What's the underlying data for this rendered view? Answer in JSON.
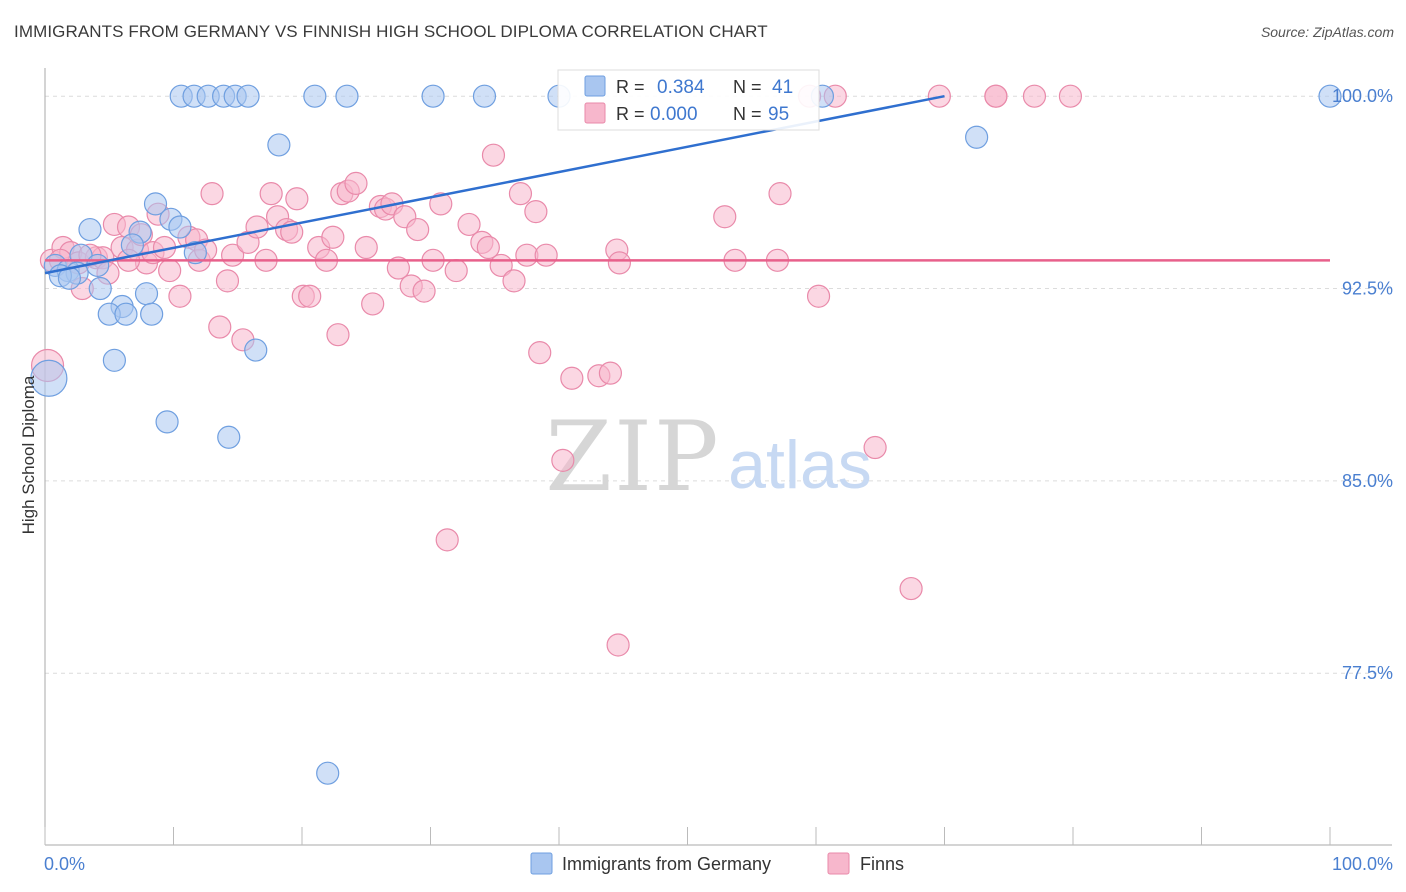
{
  "header": {
    "title": "IMMIGRANTS FROM GERMANY VS FINNISH HIGH SCHOOL DIPLOMA CORRELATION CHART",
    "source": "Source: ZipAtlas.com"
  },
  "watermark": {
    "zip": "ZIP",
    "atlas": "atlas"
  },
  "colors": {
    "series_a_fill": "#a9c6f0",
    "series_a_stroke": "#6f9fe0",
    "series_a_line": "#2f6fcf",
    "series_b_fill": "#f7b7cc",
    "series_b_stroke": "#e98aaa",
    "series_b_line": "#e8608b",
    "axis_text": "#4a7fd0"
  },
  "chart_data": {
    "type": "scatter",
    "title": "IMMIGRANTS FROM GERMANY VS FINNISH HIGH SCHOOL DIPLOMA CORRELATION CHART",
    "xlabel": "",
    "ylabel": "High School Diploma",
    "xlim": [
      0,
      100
    ],
    "ylim": [
      70.8,
      101.1
    ],
    "x_tick_labels": [
      "0.0%",
      "100.0%"
    ],
    "y_ticks": [
      100.0,
      92.5,
      85.0,
      77.5
    ],
    "y_tick_labels": [
      "100.0%",
      "92.5%",
      "85.0%",
      "77.5%"
    ],
    "grid": true,
    "legend_position": "bottom",
    "stats": [
      {
        "r_label": "R =",
        "r_value": "0.384",
        "n_label": "N =",
        "n_value": "41"
      },
      {
        "r_label": "R =",
        "r_value": "0.000",
        "n_label": "N =",
        "n_value": "95"
      }
    ],
    "series": [
      {
        "name": "Immigrants from Germany",
        "trend": {
          "x": [
            0,
            70
          ],
          "y": [
            93.1,
            100.0
          ]
        },
        "points": [
          [
            10.6,
            100
          ],
          [
            11.6,
            100
          ],
          [
            12.7,
            100
          ],
          [
            13.9,
            100
          ],
          [
            14.8,
            100
          ],
          [
            15.8,
            100
          ],
          [
            21.0,
            100
          ],
          [
            23.5,
            100
          ],
          [
            30.2,
            100
          ],
          [
            34.2,
            100
          ],
          [
            40.0,
            100
          ],
          [
            60.5,
            100
          ],
          [
            100,
            100
          ],
          [
            72.5,
            98.4
          ],
          [
            18.2,
            98.1
          ],
          [
            8.6,
            95.8
          ],
          [
            9.8,
            95.2
          ],
          [
            10.5,
            94.9
          ],
          [
            3.5,
            94.8
          ],
          [
            7.4,
            94.7
          ],
          [
            6.8,
            94.2
          ],
          [
            11.7,
            93.9
          ],
          [
            2.8,
            93.8
          ],
          [
            0.8,
            93.4
          ],
          [
            4.1,
            93.4
          ],
          [
            1.8,
            93.2
          ],
          [
            2.5,
            93.1
          ],
          [
            1.2,
            93.0
          ],
          [
            1.9,
            92.9
          ],
          [
            4.3,
            92.5
          ],
          [
            7.9,
            92.3
          ],
          [
            6.0,
            91.8
          ],
          [
            5.0,
            91.5
          ],
          [
            6.3,
            91.5
          ],
          [
            8.3,
            91.5
          ],
          [
            16.4,
            90.1
          ],
          [
            5.4,
            89.7
          ],
          [
            0.3,
            89.0
          ],
          [
            9.5,
            87.3
          ],
          [
            14.3,
            86.7
          ],
          [
            22.0,
            73.6
          ]
        ],
        "sizes": [
          11,
          11,
          11,
          11,
          11,
          11,
          11,
          11,
          11,
          11,
          11,
          11,
          11,
          11,
          11,
          11,
          11,
          11,
          11,
          11,
          11,
          11,
          11,
          11,
          11,
          11,
          11,
          11,
          11,
          11,
          11,
          11,
          11,
          11,
          11,
          11,
          11,
          18,
          11,
          11,
          11
        ]
      },
      {
        "name": "Finns",
        "trend": {
          "x": [
            0,
            100
          ],
          "y": [
            93.6,
            93.6
          ]
        },
        "points": [
          [
            74.0,
            100
          ],
          [
            69.6,
            100
          ],
          [
            61.5,
            100
          ],
          [
            59.5,
            100
          ],
          [
            0.5,
            93.6
          ],
          [
            1.4,
            94.1
          ],
          [
            2.0,
            93.9
          ],
          [
            2.6,
            93.5
          ],
          [
            2.9,
            92.5
          ],
          [
            4.0,
            93.7
          ],
          [
            4.5,
            93.7
          ],
          [
            4.9,
            93.1
          ],
          [
            5.4,
            95.0
          ],
          [
            6.0,
            94.1
          ],
          [
            6.5,
            94.9
          ],
          [
            7.2,
            94.0
          ],
          [
            7.5,
            94.6
          ],
          [
            7.9,
            93.5
          ],
          [
            8.4,
            93.9
          ],
          [
            8.8,
            95.4
          ],
          [
            9.3,
            94.1
          ],
          [
            9.7,
            93.2
          ],
          [
            10.5,
            92.2
          ],
          [
            11.2,
            94.5
          ],
          [
            11.8,
            94.4
          ],
          [
            12.0,
            93.6
          ],
          [
            12.5,
            94.0
          ],
          [
            13.0,
            96.2
          ],
          [
            13.6,
            91.0
          ],
          [
            14.2,
            92.8
          ],
          [
            14.6,
            93.8
          ],
          [
            15.4,
            90.5
          ],
          [
            15.8,
            94.3
          ],
          [
            16.5,
            94.9
          ],
          [
            17.2,
            93.6
          ],
          [
            17.6,
            96.2
          ],
          [
            18.1,
            95.3
          ],
          [
            18.8,
            94.8
          ],
          [
            19.2,
            94.7
          ],
          [
            19.6,
            96.0
          ],
          [
            20.1,
            92.2
          ],
          [
            20.6,
            92.2
          ],
          [
            21.3,
            94.1
          ],
          [
            21.9,
            93.6
          ],
          [
            22.4,
            94.5
          ],
          [
            22.8,
            90.7
          ],
          [
            23.1,
            96.2
          ],
          [
            23.6,
            96.3
          ],
          [
            24.2,
            96.6
          ],
          [
            25.5,
            91.9
          ],
          [
            25.0,
            94.1
          ],
          [
            26.1,
            95.7
          ],
          [
            26.5,
            95.6
          ],
          [
            27.0,
            95.8
          ],
          [
            27.5,
            93.3
          ],
          [
            28.0,
            95.3
          ],
          [
            28.5,
            92.6
          ],
          [
            29.0,
            94.8
          ],
          [
            29.5,
            92.4
          ],
          [
            30.2,
            93.6
          ],
          [
            30.8,
            95.8
          ],
          [
            32.0,
            93.2
          ],
          [
            33.0,
            95.0
          ],
          [
            34.0,
            94.3
          ],
          [
            34.5,
            94.1
          ],
          [
            34.9,
            97.7
          ],
          [
            35.5,
            93.4
          ],
          [
            36.5,
            92.8
          ],
          [
            37.0,
            96.2
          ],
          [
            37.5,
            93.8
          ],
          [
            38.2,
            95.5
          ],
          [
            39.0,
            93.8
          ],
          [
            38.5,
            90.0
          ],
          [
            40.3,
            85.8
          ],
          [
            41.0,
            89.0
          ],
          [
            43.1,
            89.1
          ],
          [
            44.5,
            94.0
          ],
          [
            44.7,
            93.5
          ],
          [
            44.0,
            89.2
          ],
          [
            44.6,
            78.6
          ],
          [
            31.3,
            82.7
          ],
          [
            52.9,
            95.3
          ],
          [
            53.7,
            93.6
          ],
          [
            57.0,
            93.6
          ],
          [
            57.2,
            96.2
          ],
          [
            60.2,
            92.2
          ],
          [
            64.6,
            86.3
          ],
          [
            67.4,
            80.8
          ],
          [
            74.0,
            100
          ],
          [
            77.0,
            100
          ],
          [
            79.8,
            100
          ],
          [
            0.2,
            89.5
          ],
          [
            1.2,
            93.6
          ],
          [
            3.5,
            93.8
          ],
          [
            6.5,
            93.6
          ]
        ],
        "sizes": [
          11,
          11,
          11,
          11,
          11,
          11,
          11,
          11,
          11,
          11,
          11,
          11,
          11,
          11,
          11,
          11,
          11,
          11,
          11,
          11,
          11,
          11,
          11,
          11,
          11,
          11,
          11,
          11,
          11,
          11,
          11,
          11,
          11,
          11,
          11,
          11,
          11,
          11,
          11,
          11,
          11,
          11,
          11,
          11,
          11,
          11,
          11,
          11,
          11,
          11,
          11,
          11,
          11,
          11,
          11,
          11,
          11,
          11,
          11,
          11,
          11,
          11,
          11,
          11,
          11,
          11,
          11,
          11,
          11,
          11,
          11,
          11,
          11,
          11,
          11,
          11,
          11,
          11,
          11,
          11,
          11,
          11,
          11,
          11,
          11,
          11,
          11,
          11,
          11,
          11,
          11,
          16,
          11,
          11,
          11
        ]
      }
    ]
  }
}
